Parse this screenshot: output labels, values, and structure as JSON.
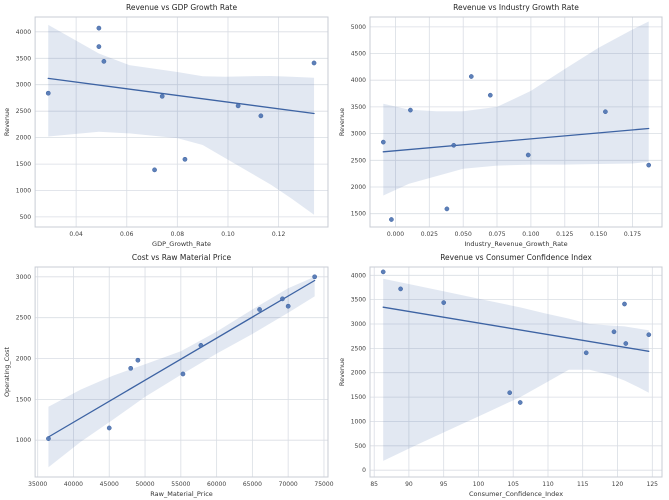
{
  "figure": {
    "background": "#ffffff",
    "rows": 2,
    "cols": 2,
    "grid": true,
    "legend": "none"
  },
  "style": {
    "point_color": "#4c72b0",
    "point_opacity": 0.9,
    "line_color": "#3d63a3",
    "band_color": "#4c72b0",
    "band_opacity": 0.16,
    "grid_color": "#d9dde4",
    "spine_color": "#c9cdd5",
    "title_color": "#262626",
    "tick_color": "#404040",
    "label_color": "#333333"
  },
  "chart_data": [
    {
      "type": "scatter",
      "title": "Revenue vs GDP Growth Rate",
      "xlabel": "GDP_Growth_Rate",
      "ylabel": "Revenue",
      "x": [
        0.029,
        0.049,
        0.049,
        0.051,
        0.071,
        0.074,
        0.083,
        0.104,
        0.113,
        0.134
      ],
      "y": [
        2840,
        4070,
        3720,
        3440,
        1390,
        2780,
        1590,
        2600,
        2410,
        3410
      ],
      "regression_line": {
        "x1": 0.029,
        "y1": 3120,
        "x2": 0.134,
        "y2": 2455
      },
      "confidence_band": {
        "x": [
          0.029,
          0.049,
          0.061,
          0.08,
          0.09,
          0.099,
          0.108,
          0.117,
          0.125,
          0.134
        ],
        "upper": [
          4130,
          3590,
          3370,
          3240,
          3160,
          3150,
          3160,
          3165,
          3150,
          3130
        ],
        "lower": [
          2020,
          2110,
          2080,
          1990,
          1860,
          1610,
          1360,
          1110,
          850,
          540
        ]
      },
      "xlim": [
        0.0238,
        0.1395
      ],
      "ylim": [
        310,
        4280
      ],
      "xticks": {
        "values": [
          0.04,
          0.06,
          0.08,
          0.1,
          0.12
        ],
        "labels": [
          "0.04",
          "0.06",
          "0.08",
          "0.10",
          "0.12"
        ]
      },
      "yticks": {
        "values": [
          500,
          1000,
          1500,
          2000,
          2500,
          3000,
          3500,
          4000
        ],
        "labels": [
          "500",
          "1000",
          "1500",
          "2000",
          "2500",
          "3000",
          "3500",
          "4000"
        ]
      }
    },
    {
      "type": "scatter",
      "title": "Revenue vs Industry Growth Rate",
      "xlabel": "Industry_Revenue_Growth_Rate",
      "ylabel": "Revenue",
      "x": [
        -0.009,
        -0.003,
        0.011,
        0.038,
        0.043,
        0.056,
        0.07,
        0.098,
        0.155,
        0.187
      ],
      "y": [
        2840,
        1390,
        3440,
        1590,
        2780,
        4070,
        3720,
        2600,
        3410,
        2410
      ],
      "regression_line": {
        "x1": -0.009,
        "y1": 2660,
        "x2": 0.187,
        "y2": 3095
      },
      "confidence_band": {
        "x": [
          -0.009,
          0.01,
          0.03,
          0.05,
          0.075,
          0.1,
          0.125,
          0.15,
          0.175,
          0.187
        ],
        "upper": [
          3560,
          3450,
          3420,
          3420,
          3500,
          3800,
          4210,
          4610,
          4950,
          5100
        ],
        "lower": [
          1840,
          2060,
          2200,
          2340,
          2400,
          2420,
          2420,
          2430,
          2440,
          2470
        ]
      },
      "xlim": [
        -0.0188,
        0.1968
      ],
      "ylim": [
        1250,
        5185
      ],
      "xticks": {
        "values": [
          0.0,
          0.025,
          0.05,
          0.075,
          0.1,
          0.125,
          0.15,
          0.175
        ],
        "labels": [
          "0.000",
          "0.025",
          "0.050",
          "0.075",
          "0.100",
          "0.125",
          "0.150",
          "0.175"
        ]
      },
      "yticks": {
        "values": [
          1500,
          2000,
          2500,
          3000,
          3500,
          4000,
          4500,
          5000
        ],
        "labels": [
          "1500",
          "2000",
          "2500",
          "3000",
          "3500",
          "4000",
          "4500",
          "5000"
        ]
      }
    },
    {
      "type": "scatter",
      "title": "Cost vs Raw Material Price",
      "xlabel": "Raw_Material_Price",
      "ylabel": "Operating_Cost",
      "x": [
        36500,
        45000,
        48000,
        49000,
        55300,
        57800,
        66000,
        69200,
        70000,
        73700
      ],
      "y": [
        1020,
        1150,
        1880,
        1980,
        1810,
        2160,
        2600,
        2730,
        2640,
        3000
      ],
      "regression_line": {
        "x1": 36500,
        "y1": 1040,
        "x2": 73700,
        "y2": 2955
      },
      "confidence_band": {
        "x": [
          36500,
          41000,
          45500,
          50000,
          55000,
          60000,
          65000,
          70000,
          73700
        ],
        "upper": [
          1410,
          1620,
          1790,
          1930,
          2090,
          2330,
          2600,
          2860,
          3000
        ],
        "lower": [
          670,
          980,
          1250,
          1530,
          1800,
          2060,
          2300,
          2560,
          2760
        ]
      },
      "xlim": [
        34640,
        75560
      ],
      "ylim": [
        550,
        3120
      ],
      "xticks": {
        "values": [
          35000,
          40000,
          45000,
          50000,
          55000,
          60000,
          65000,
          70000,
          75000
        ],
        "labels": [
          "35000",
          "40000",
          "45000",
          "50000",
          "55000",
          "60000",
          "65000",
          "70000",
          "75000"
        ]
      },
      "yticks": {
        "values": [
          1000,
          1500,
          2000,
          2500,
          3000
        ],
        "labels": [
          "1000",
          "1500",
          "2000",
          "2500",
          "3000"
        ]
      }
    },
    {
      "type": "scatter",
      "title": "Revenue vs Consumer Confidence Index",
      "xlabel": "Consumer_Confidence_Index",
      "ylabel": "Revenue",
      "x": [
        86.3,
        88.8,
        95.0,
        104.5,
        106.0,
        115.5,
        119.5,
        121.0,
        121.2,
        124.5
      ],
      "y": [
        4070,
        3720,
        3440,
        1590,
        1390,
        2410,
        2840,
        3410,
        2600,
        2780
      ],
      "regression_line": {
        "x1": 86.3,
        "y1": 3345,
        "x2": 124.5,
        "y2": 2440
      },
      "confidence_band": {
        "x": [
          86.3,
          91,
          96,
          101,
          106,
          109.5,
          113,
          116,
          119,
          121,
          123,
          124.5
        ],
        "upper": [
          3930,
          3790,
          3640,
          3490,
          3340,
          3220,
          3110,
          3000,
          2970,
          2950,
          2905,
          2870
        ],
        "lower": [
          190,
          510,
          840,
          1170,
          1500,
          1780,
          2060,
          2060,
          1950,
          1840,
          1700,
          1590
        ]
      },
      "xlim": [
        84.4,
        126.4
      ],
      "ylim": [
        -140,
        4170
      ],
      "xticks": {
        "values": [
          85,
          90,
          95,
          100,
          105,
          110,
          115,
          120,
          125
        ],
        "labels": [
          "85",
          "90",
          "95",
          "100",
          "105",
          "110",
          "115",
          "120",
          "125"
        ]
      },
      "yticks": {
        "values": [
          0,
          500,
          1000,
          1500,
          2000,
          2500,
          3000,
          3500,
          4000
        ],
        "labels": [
          "0",
          "500",
          "1000",
          "1500",
          "2000",
          "2500",
          "3000",
          "3500",
          "4000"
        ]
      }
    }
  ]
}
